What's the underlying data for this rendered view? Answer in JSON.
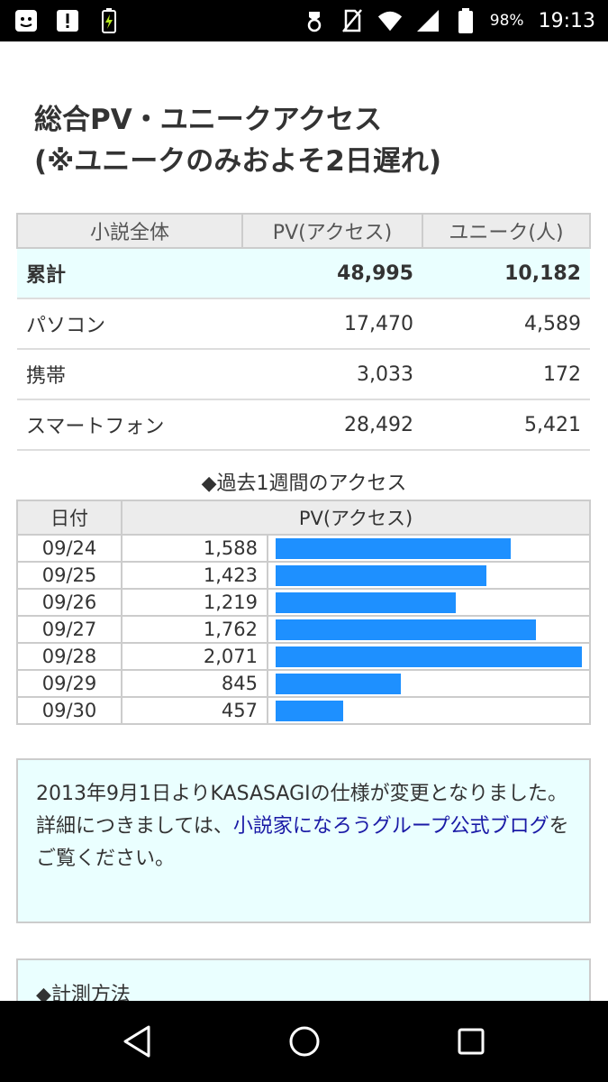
{
  "status_bar": {
    "battery_percent": "98%",
    "time": "19:13",
    "icons_left": [
      "notification-face-icon",
      "alert-icon",
      "battery-saver-icon"
    ],
    "icons_right": [
      "alarm-icon",
      "no-sim-icon",
      "wifi-icon",
      "signal-icon",
      "battery-icon"
    ]
  },
  "page": {
    "title_line1": "総合PV・ユニークアクセス",
    "title_line2": "(※ユニークのみおよそ2日遅れ)"
  },
  "summary": {
    "headers": [
      "小説全体",
      "PV(アクセス)",
      "ユニーク(人)"
    ],
    "rows": [
      {
        "label": "累計",
        "pv": "48,995",
        "unique": "10,182"
      },
      {
        "label": "パソコン",
        "pv": "17,470",
        "unique": "4,589"
      },
      {
        "label": "携帯",
        "pv": "3,033",
        "unique": "172"
      },
      {
        "label": "スマートフォン",
        "pv": "28,492",
        "unique": "5,421"
      }
    ]
  },
  "weekly": {
    "caption": "◆過去1週間のアクセス",
    "headers": [
      "日付",
      "PV(アクセス)"
    ],
    "max": 2071,
    "rows": [
      {
        "date": "09/24",
        "pv": "1,588",
        "value": 1588
      },
      {
        "date": "09/25",
        "pv": "1,423",
        "value": 1423
      },
      {
        "date": "09/26",
        "pv": "1,219",
        "value": 1219
      },
      {
        "date": "09/27",
        "pv": "1,762",
        "value": 1762
      },
      {
        "date": "09/28",
        "pv": "2,071",
        "value": 2071
      },
      {
        "date": "09/29",
        "pv": "845",
        "value": 845
      },
      {
        "date": "09/30",
        "pv": "457",
        "value": 457
      }
    ],
    "bar_color": "#1e90ff"
  },
  "notice": {
    "text1": "2013年9月1日よりKASASAGIの仕様が変更となりました。",
    "text2": "詳細につきましては、",
    "link": "小説家になろうグループ公式ブログ",
    "text3": "をご覧ください。"
  },
  "method": {
    "heading": "◆計測方法"
  },
  "colors": {
    "accent_bg": "#eaffff",
    "link": "#1a1aa6"
  }
}
